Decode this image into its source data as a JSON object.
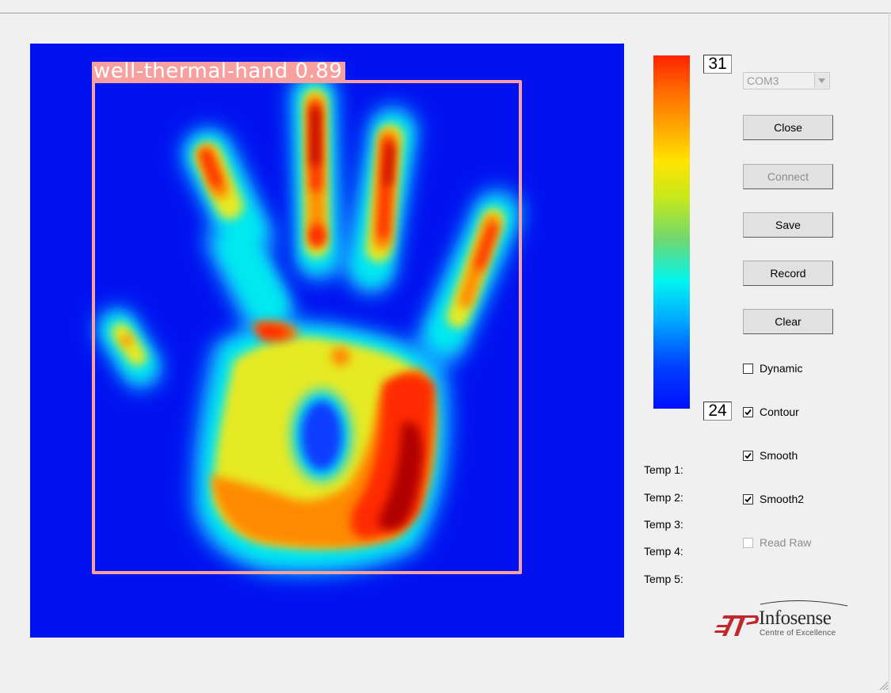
{
  "thermal_view": {
    "detection": {
      "label": "well-thermal-hand 0.89",
      "color": "#f6a0a0"
    },
    "background_color": "#0012f0"
  },
  "scale": {
    "max": "31",
    "min": "24"
  },
  "port_select": {
    "value": "COM3"
  },
  "buttons": {
    "close": "Close",
    "connect": "Connect",
    "save": "Save",
    "record": "Record",
    "clear": "Clear"
  },
  "checkboxes": {
    "dynamic": {
      "label": "Dynamic",
      "checked": false
    },
    "contour": {
      "label": "Contour",
      "checked": true
    },
    "smooth": {
      "label": "Smooth",
      "checked": true
    },
    "smooth2": {
      "label": "Smooth2",
      "checked": true
    },
    "read_raw": {
      "label": "Read Raw",
      "checked": false,
      "disabled": true
    }
  },
  "temps": {
    "t1": "Temp 1:",
    "t2": "Temp 2:",
    "t3": "Temp 3:",
    "t4": "Temp 4:",
    "t5": "Temp 5:"
  },
  "logo": {
    "name": "Infosense",
    "subtitle": "Centre of Excellence",
    "accent": "#c0282d"
  }
}
